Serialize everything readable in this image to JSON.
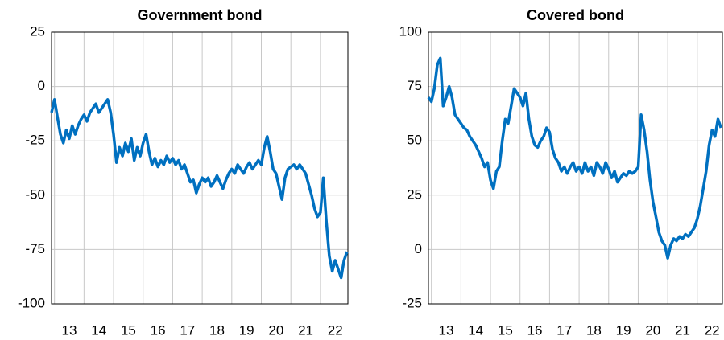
{
  "chart_data": [
    {
      "type": "line",
      "title": "Government bond",
      "color": "#0070c0",
      "grid": true,
      "xlim": [
        12.9,
        22.93
      ],
      "xticks": [
        13,
        14,
        15,
        16,
        17,
        18,
        19,
        20,
        21,
        22
      ],
      "ylim": [
        -100,
        25
      ],
      "yticks": [
        -100,
        -75,
        -50,
        -25,
        0,
        25
      ],
      "x": [
        12.9,
        13.0,
        13.1,
        13.2,
        13.3,
        13.4,
        13.5,
        13.6,
        13.7,
        13.8,
        13.9,
        14.0,
        14.1,
        14.2,
        14.3,
        14.4,
        14.5,
        14.6,
        14.7,
        14.8,
        14.9,
        15.0,
        15.1,
        15.2,
        15.3,
        15.4,
        15.5,
        15.6,
        15.7,
        15.8,
        15.9,
        16.0,
        16.1,
        16.2,
        16.3,
        16.4,
        16.5,
        16.6,
        16.7,
        16.8,
        16.9,
        17.0,
        17.1,
        17.2,
        17.3,
        17.4,
        17.5,
        17.6,
        17.7,
        17.8,
        17.9,
        18.0,
        18.1,
        18.2,
        18.3,
        18.4,
        18.5,
        18.6,
        18.7,
        18.8,
        18.9,
        19.0,
        19.1,
        19.2,
        19.3,
        19.4,
        19.5,
        19.6,
        19.7,
        19.8,
        19.9,
        20.0,
        20.1,
        20.2,
        20.3,
        20.4,
        20.5,
        20.6,
        20.7,
        20.8,
        20.9,
        21.0,
        21.1,
        21.2,
        21.3,
        21.4,
        21.5,
        21.6,
        21.7,
        21.8,
        21.9,
        22.0,
        22.1,
        22.2,
        22.3,
        22.4,
        22.5,
        22.6,
        22.7,
        22.8,
        22.9
      ],
      "values": [
        -12,
        -6,
        -14,
        -22,
        -26,
        -20,
        -24,
        -18,
        -22,
        -18,
        -15,
        -13,
        -16,
        -12,
        -10,
        -8,
        -12,
        -10,
        -8,
        -6,
        -12,
        -22,
        -35,
        -28,
        -32,
        -26,
        -30,
        -24,
        -34,
        -28,
        -32,
        -26,
        -22,
        -30,
        -36,
        -33,
        -37,
        -34,
        -36,
        -32,
        -35,
        -33,
        -36,
        -34,
        -38,
        -36,
        -40,
        -44,
        -43,
        -49,
        -45,
        -42,
        -44,
        -42,
        -46,
        -44,
        -41,
        -44,
        -47,
        -43,
        -40,
        -38,
        -40,
        -36,
        -38,
        -40,
        -37,
        -35,
        -38,
        -36,
        -34,
        -36,
        -28,
        -23,
        -30,
        -38,
        -40,
        -46,
        -52,
        -42,
        -38,
        -37,
        -36,
        -38,
        -36,
        -38,
        -40,
        -45,
        -50,
        -56,
        -60,
        -58,
        -42,
        -62,
        -78,
        -85,
        -80,
        -84,
        -88,
        -80,
        -76
      ]
    },
    {
      "type": "line",
      "title": "Covered bond",
      "color": "#0070c0",
      "grid": true,
      "xlim": [
        12.9,
        22.85
      ],
      "xticks": [
        13,
        14,
        15,
        16,
        17,
        18,
        19,
        20,
        21,
        22
      ],
      "ylim": [
        -25,
        100
      ],
      "yticks": [
        -25,
        0,
        25,
        50,
        75,
        100
      ],
      "x": [
        12.9,
        13.0,
        13.1,
        13.2,
        13.3,
        13.4,
        13.5,
        13.6,
        13.7,
        13.8,
        13.9,
        14.0,
        14.1,
        14.2,
        14.3,
        14.4,
        14.5,
        14.6,
        14.7,
        14.8,
        14.9,
        15.0,
        15.1,
        15.2,
        15.3,
        15.4,
        15.5,
        15.6,
        15.7,
        15.8,
        15.9,
        16.0,
        16.1,
        16.2,
        16.3,
        16.4,
        16.5,
        16.6,
        16.7,
        16.8,
        16.9,
        17.0,
        17.1,
        17.2,
        17.3,
        17.4,
        17.5,
        17.6,
        17.7,
        17.8,
        17.9,
        18.0,
        18.1,
        18.2,
        18.3,
        18.4,
        18.5,
        18.6,
        18.7,
        18.8,
        18.9,
        19.0,
        19.1,
        19.2,
        19.3,
        19.4,
        19.5,
        19.6,
        19.7,
        19.8,
        19.9,
        20.0,
        20.1,
        20.2,
        20.3,
        20.4,
        20.5,
        20.6,
        20.7,
        20.8,
        20.9,
        21.0,
        21.1,
        21.2,
        21.3,
        21.4,
        21.5,
        21.6,
        21.7,
        21.8,
        21.9,
        22.0,
        22.1,
        22.2,
        22.3,
        22.4,
        22.5,
        22.6,
        22.7,
        22.8
      ],
      "values": [
        70,
        68,
        74,
        85,
        88,
        66,
        70,
        75,
        70,
        62,
        60,
        58,
        56,
        55,
        52,
        50,
        48,
        45,
        42,
        38,
        40,
        32,
        28,
        36,
        38,
        50,
        60,
        58,
        66,
        74,
        72,
        70,
        66,
        72,
        60,
        52,
        48,
        47,
        50,
        52,
        56,
        54,
        46,
        42,
        40,
        36,
        38,
        35,
        38,
        40,
        36,
        38,
        35,
        40,
        36,
        38,
        34,
        40,
        38,
        35,
        40,
        37,
        33,
        36,
        31,
        33,
        35,
        34,
        36,
        35,
        36,
        38,
        62,
        55,
        45,
        32,
        22,
        15,
        8,
        4,
        2,
        -4,
        2,
        5,
        4,
        6,
        5,
        7,
        6,
        8,
        10,
        14,
        20,
        28,
        36,
        48,
        55,
        52,
        60,
        56
      ]
    }
  ]
}
